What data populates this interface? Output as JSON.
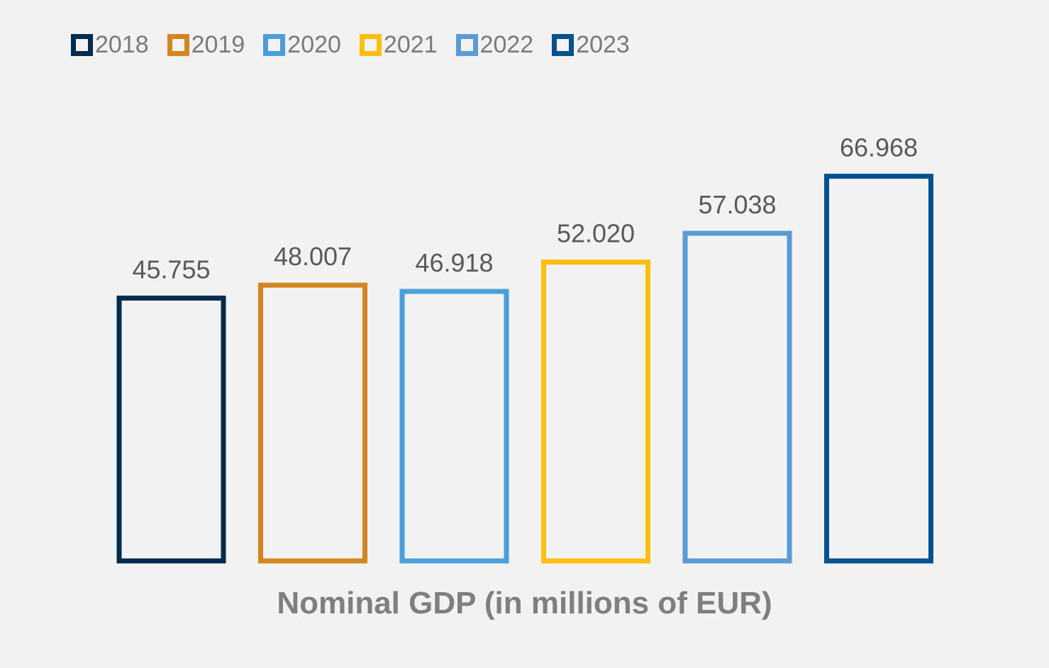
{
  "chart_data": {
    "type": "bar",
    "title": "",
    "xlabel": "Nominal GDP (in millions of EUR)",
    "ylabel": "",
    "ylim": [
      0,
      70
    ],
    "grid": false,
    "legend_position": "top-left",
    "bar_style": "outline",
    "categories": [
      "Nominal GDP (in millions of EUR)"
    ],
    "series": [
      {
        "name": "2018",
        "color": "#002b4d",
        "values": [
          45.755
        ],
        "label": "45.755"
      },
      {
        "name": "2019",
        "color": "#d4861e",
        "values": [
          48.007
        ],
        "label": "48.007"
      },
      {
        "name": "2020",
        "color": "#4a9fd8",
        "values": [
          46.918
        ],
        "label": "46.918"
      },
      {
        "name": "2021",
        "color": "#fcbf0f",
        "values": [
          52.02
        ],
        "label": "52.020"
      },
      {
        "name": "2022",
        "color": "#5b9bd5",
        "values": [
          57.038
        ],
        "label": "57.038"
      },
      {
        "name": "2023",
        "color": "#00528f",
        "values": [
          66.968
        ],
        "label": "66.968"
      }
    ]
  },
  "colors": {
    "background": "#f2f2f2",
    "label_text": "#595959",
    "axis_title_text": "#7f7f7f",
    "legend_text": "#7a7a7a"
  }
}
